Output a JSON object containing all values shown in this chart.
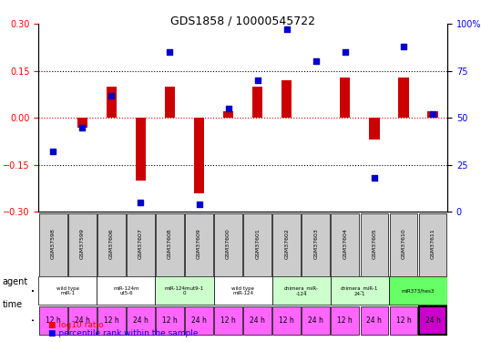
{
  "title": "GDS1858 / 10000545722",
  "samples": [
    "GSM37598",
    "GSM37599",
    "GSM37606",
    "GSM37607",
    "GSM37608",
    "GSM37609",
    "GSM37600",
    "GSM37601",
    "GSM37602",
    "GSM37603",
    "GSM37604",
    "GSM37605",
    "GSM37610",
    "GSM37611"
  ],
  "log10_ratio": [
    0.0,
    -0.03,
    0.1,
    -0.2,
    0.1,
    -0.24,
    0.02,
    0.1,
    0.12,
    0.0,
    0.13,
    -0.07,
    0.13,
    0.02
  ],
  "percentile": [
    32,
    45,
    62,
    5,
    85,
    4,
    55,
    70,
    97,
    80,
    85,
    18,
    88,
    52
  ],
  "ylim_left": [
    -0.3,
    0.3
  ],
  "ylim_right": [
    0,
    100
  ],
  "yticks_left": [
    -0.3,
    -0.15,
    0.0,
    0.15,
    0.3
  ],
  "yticks_right": [
    0,
    25,
    50,
    75,
    100
  ],
  "agent_groups": [
    {
      "label": "wild type\nmiR-1",
      "cols": [
        0,
        1
      ],
      "color": "#ffffff"
    },
    {
      "label": "miR-124m\nut5-6",
      "cols": [
        2,
        3
      ],
      "color": "#ffffff"
    },
    {
      "label": "miR-124mut9-1\n0",
      "cols": [
        4,
        5
      ],
      "color": "#ccffcc"
    },
    {
      "label": "wild type\nmiR-124",
      "cols": [
        6,
        7
      ],
      "color": "#ffffff"
    },
    {
      "label": "chimera_miR-\n-124",
      "cols": [
        8,
        9
      ],
      "color": "#ccffcc"
    },
    {
      "label": "chimera_miR-1\n24-1",
      "cols": [
        10,
        11
      ],
      "color": "#ccffcc"
    },
    {
      "label": "miR373/hes3",
      "cols": [
        12,
        13
      ],
      "color": "#66ff66"
    }
  ],
  "time_labels": [
    "12 h",
    "24 h",
    "12 h",
    "24 h",
    "12 h",
    "24 h",
    "12 h",
    "24 h",
    "12 h",
    "24 h",
    "12 h",
    "24 h",
    "12 h",
    "24 h"
  ],
  "time_colors": [
    "#ff66ff",
    "#ff66ff",
    "#ff66ff",
    "#ff66ff",
    "#ff66ff",
    "#ff66ff",
    "#ff66ff",
    "#ff66ff",
    "#ff66ff",
    "#ff66ff",
    "#ff66ff",
    "#ff66ff",
    "#ff66ff",
    "#000000"
  ],
  "time_bg": [
    "#ff66ff",
    "#ff66ff",
    "#ff66ff",
    "#ff66ff",
    "#ff66ff",
    "#ff66ff",
    "#ff66ff",
    "#ff66ff",
    "#ff66ff",
    "#ff66ff",
    "#ff66ff",
    "#ff66ff",
    "#ff66ff",
    "#ff66ff"
  ],
  "bar_color": "#cc0000",
  "dot_color": "#0000cc",
  "grid_color": "#000000",
  "zero_line_color": "#cc0000",
  "sample_bg": "#cccccc"
}
